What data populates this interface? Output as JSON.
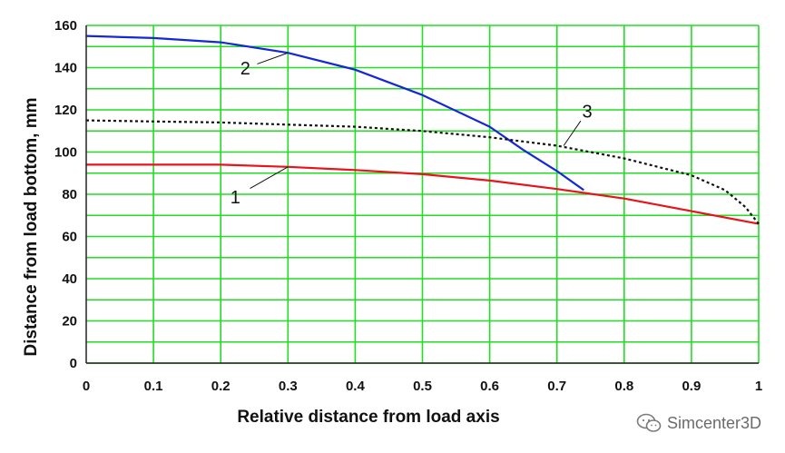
{
  "chart_data": {
    "type": "line",
    "title": "",
    "xlabel": "Relative distance from load axis",
    "ylabel": "Distance from load bottom, mm",
    "xlim": [
      0,
      1
    ],
    "ylim": [
      0,
      160
    ],
    "x_ticks": [
      0,
      0.1,
      0.2,
      0.3,
      0.4,
      0.5,
      0.6,
      0.7,
      0.8,
      0.9,
      1
    ],
    "x_tick_labels": [
      "0",
      "0.1",
      "0.2",
      "0.3",
      "0.4",
      "0.5",
      "0.6",
      "0.7",
      "0.8",
      "0.9",
      "1"
    ],
    "y_ticks": [
      0,
      20,
      40,
      60,
      80,
      100,
      120,
      140,
      160
    ],
    "y_tick_labels": [
      "0",
      "20",
      "40",
      "60",
      "80",
      "100",
      "120",
      "140",
      "160"
    ],
    "grid": true,
    "series": [
      {
        "name": "1",
        "color": "#e8141c",
        "dash": "solid",
        "x": [
          0,
          0.1,
          0.2,
          0.3,
          0.4,
          0.5,
          0.6,
          0.7,
          0.8,
          0.9,
          1.0
        ],
        "y": [
          94,
          94,
          94,
          93,
          91.5,
          89.5,
          86.5,
          82.5,
          78,
          72,
          66
        ]
      },
      {
        "name": "2",
        "color": "#1428d8",
        "dash": "solid",
        "x": [
          0,
          0.1,
          0.2,
          0.3,
          0.4,
          0.5,
          0.6,
          0.65,
          0.7,
          0.74
        ],
        "y": [
          155,
          154,
          152,
          147,
          139,
          127,
          112,
          101,
          91,
          82
        ]
      },
      {
        "name": "3",
        "color": "#111111",
        "dash": "dotted",
        "x": [
          0,
          0.1,
          0.2,
          0.3,
          0.4,
          0.5,
          0.6,
          0.7,
          0.8,
          0.9,
          0.95,
          0.98,
          1.0
        ],
        "y": [
          115,
          114.5,
          114,
          113,
          112,
          110,
          107,
          103,
          97,
          89,
          82,
          74,
          66
        ]
      }
    ],
    "annotations": [
      {
        "text": "1",
        "series": "1",
        "x": 0.3,
        "y": 93
      },
      {
        "text": "2",
        "series": "2",
        "x": 0.3,
        "y": 147
      },
      {
        "text": "3",
        "series": "3",
        "x": 0.71,
        "y": 103
      }
    ]
  },
  "watermark": {
    "text": "Simcenter3D",
    "icon": "wechat-icon"
  }
}
